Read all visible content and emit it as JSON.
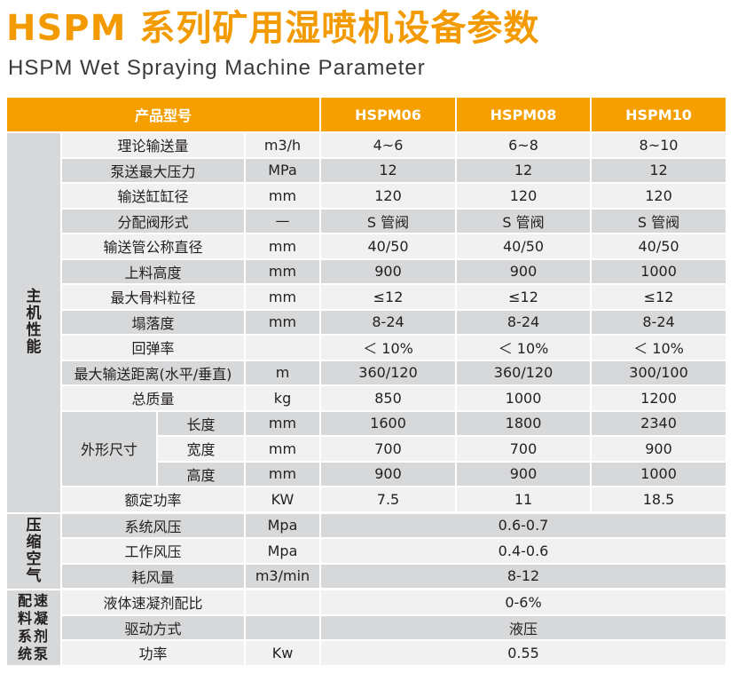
{
  "title": "HSPM 系列矿用湿喷机设备参数",
  "subtitle": "HSPM Wet Spraying Machine Parameter",
  "table": {
    "header": {
      "product_model": "产品型号",
      "models": [
        "HSPM06",
        "HSPM08",
        "HSPM10"
      ]
    },
    "sections": {
      "main": "主机性能",
      "air": "压缩空气",
      "accel": "配速料凝系剂统泵"
    },
    "dims_group": "外形尺寸",
    "rows": [
      {
        "param": "理论输送量",
        "unit": "m3/h",
        "values": [
          "4~6",
          "6~8",
          "8~10"
        ]
      },
      {
        "param": "泵送最大压力",
        "unit": "MPa",
        "values": [
          "12",
          "12",
          "12"
        ]
      },
      {
        "param": "输送缸缸径",
        "unit": "mm",
        "values": [
          "120",
          "120",
          "120"
        ]
      },
      {
        "param": "分配阀形式",
        "unit": "—",
        "values": [
          "S 管阀",
          "S 管阀",
          "S 管阀"
        ]
      },
      {
        "param": "输送管公称直径",
        "unit": "mm",
        "values": [
          "40/50",
          "40/50",
          "40/50"
        ]
      },
      {
        "param": "上料高度",
        "unit": "mm",
        "values": [
          "900",
          "900",
          "1000"
        ]
      },
      {
        "param": "最大骨料粒径",
        "unit": "mm",
        "values": [
          "≤12",
          "≤12",
          "≤12"
        ]
      },
      {
        "param": "塌落度",
        "unit": "mm",
        "values": [
          "8-24",
          "8-24",
          "8-24"
        ]
      },
      {
        "param": "回弹率",
        "unit": "",
        "values": [
          "＜ 10%",
          "＜ 10%",
          "＜ 10%"
        ]
      },
      {
        "param": "最大输送距离(水平/垂直)",
        "unit": "m",
        "values": [
          "360/120",
          "360/120",
          "300/100"
        ]
      },
      {
        "param": "总质量",
        "unit": "kg",
        "values": [
          "850",
          "1000",
          "1200"
        ]
      },
      {
        "param": "长度",
        "unit": "mm",
        "values": [
          "1600",
          "1800",
          "2340"
        ]
      },
      {
        "param": "宽度",
        "unit": "mm",
        "values": [
          "700",
          "700",
          "900"
        ]
      },
      {
        "param": "高度",
        "unit": "mm",
        "values": [
          "900",
          "900",
          "1000"
        ]
      },
      {
        "param": "额定功率",
        "unit": "KW",
        "values": [
          "7.5",
          "11",
          "18.5"
        ]
      },
      {
        "param": "系统风压",
        "unit": "Mpa",
        "value": "0.6-0.7"
      },
      {
        "param": "工作风压",
        "unit": "Mpa",
        "value": "0.4-0.6"
      },
      {
        "param": "耗风量",
        "unit": "m3/min",
        "value": "8-12"
      },
      {
        "param": "液体速凝剂配比",
        "unit": "",
        "value": "0-6%"
      },
      {
        "param": "驱动方式",
        "unit": "",
        "value": "液压"
      },
      {
        "param": "功率",
        "unit": "Kw",
        "value": "0.55"
      }
    ]
  },
  "colors": {
    "accent": "#f39a00",
    "header_bg": "#f5a000",
    "row_light": "#f1f1f2",
    "row_dark": "#d7d8da"
  }
}
